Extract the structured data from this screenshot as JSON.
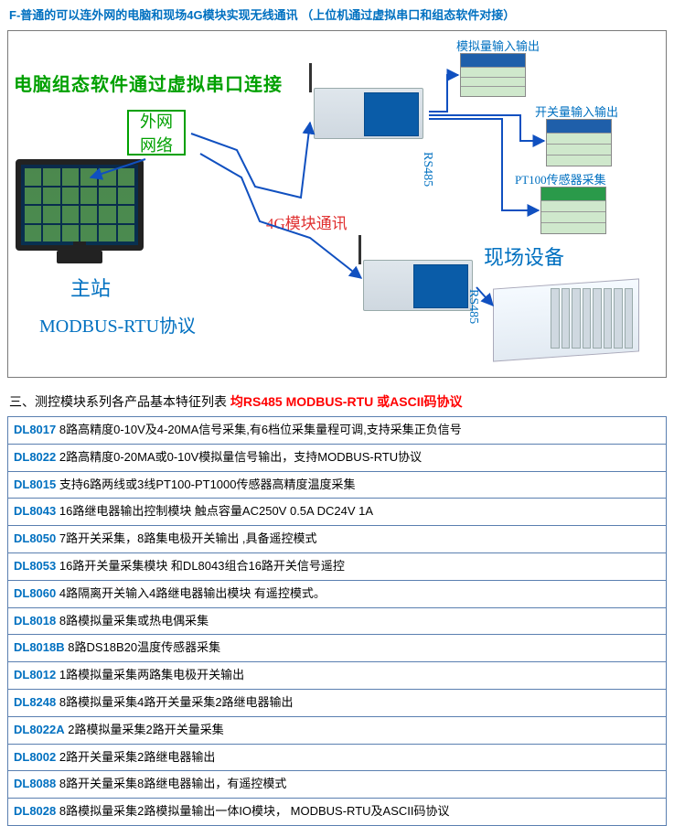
{
  "section_f": {
    "main": "F-普通的可以连外网的电脑和现场4G模块实现无线通讯",
    "sub": "（上位机通过虚拟串口和组态软件对接）"
  },
  "diagram": {
    "top_text": "电脑组态软件通过虚拟串口连接",
    "ext_net": {
      "line1": "外网",
      "line2": "网络"
    },
    "host_station": "主站",
    "protocol": "MODBUS-RTU协议",
    "link_4g": "4G模块通讯",
    "rs485_a": "RS485",
    "rs485_b": "RS485",
    "analog_io": "模拟量输入输出",
    "digital_io": "开关量输入输出",
    "pt100": "PT100传感器采集",
    "field_device": "现场设备",
    "colors": {
      "green": "#00a000",
      "blue": "#0070c0",
      "red": "#e03030",
      "arrow_blue": "#1050c0"
    }
  },
  "section3": {
    "prefix": "三、测控模块系列各产品基本特征列表",
    "suffix": " 均RS485  MODBUS-RTU 或ASCII码协议"
  },
  "products": [
    {
      "code": "DL8017",
      "desc": " 8路高精度0-10V及4-20MA信号采集,有6档位采集量程可调,支持采集正负信号"
    },
    {
      "code": "DL8022",
      "desc": " 2路高精度0-20MA或0-10V模拟量信号输出，支持MODBUS-RTU协议"
    },
    {
      "code": "DL8015",
      "desc": " 支持6路两线或3线PT100-PT1000传感器高精度温度采集"
    },
    {
      "code": "DL8043",
      "desc": " 16路继电器输出控制模块 触点容量AC250V 0.5A  DC24V 1A"
    },
    {
      "code": "DL8050",
      "desc": " 7路开关采集，8路集电极开关输出 ,具备遥控模式"
    },
    {
      "code": "DL8053",
      "desc": " 16路开关量采集模块    和DL8043组合16路开关信号遥控"
    },
    {
      "code": "DL8060",
      "desc": " 4路隔离开关输入4路继电器输出模块   有遥控模式。"
    },
    {
      "code": "DL8018",
      "desc": " 8路模拟量采集或热电偶采集"
    },
    {
      "code": "DL8018B",
      "desc": " 8路DS18B20温度传感器采集"
    },
    {
      "code": "DL8012",
      "desc": " 1路模拟量采集两路集电极开关输出"
    },
    {
      "code": "DL8248",
      "desc": "    8路模拟量采集4路开关量采集2路继电器输出"
    },
    {
      "code": "DL8022A",
      "desc": " 2路模拟量采集2路开关量采集"
    },
    {
      "code": "DL8002",
      "desc": " 2路开关量采集2路继电器输出"
    },
    {
      "code": "DL8088",
      "desc": " 8路开关量采集8路继电器输出，有遥控模式"
    },
    {
      "code": "DL8028",
      "desc": " 8路模拟量采集2路模拟量输出一体IO模块，  MODBUS-RTU及ASCII码协议"
    }
  ]
}
